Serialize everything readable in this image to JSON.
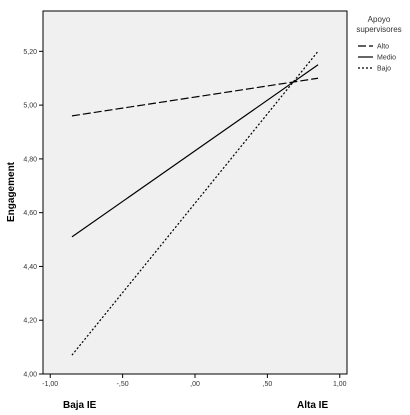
{
  "chart_data": {
    "type": "line",
    "x": [
      -0.85,
      0.85
    ],
    "series": [
      {
        "name": "Alto",
        "values": [
          4.96,
          5.1
        ],
        "dash": "8,3"
      },
      {
        "name": "Medio",
        "values": [
          4.51,
          5.15
        ],
        "dash": ""
      },
      {
        "name": "Bajo",
        "values": [
          4.07,
          5.2
        ],
        "dash": "2,2"
      }
    ],
    "xlim": [
      -1.05,
      1.05
    ],
    "ylim": [
      4.0,
      5.35
    ],
    "xticks": [
      -1.0,
      -0.5,
      0.0,
      0.5,
      1.0
    ],
    "xtick_labels": [
      "-1,00",
      "-,50",
      ",00",
      ",50",
      "1,00"
    ],
    "yticks": [
      4.0,
      4.2,
      4.4,
      4.6,
      4.8,
      5.0,
      5.2
    ],
    "ytick_labels": [
      "4,00",
      "4,20",
      "4,40",
      "4,60",
      "4,80",
      "5,00",
      "5,20"
    ],
    "ylabel": "Engagement",
    "xlabel_left": "Baja IE",
    "xlabel_right": "Alta IE",
    "legend_title_line1": "Apoyo",
    "legend_title_line2": "supervisores",
    "legend_position": "right",
    "grid": false,
    "colors": {
      "plot_bg": "#f0f0f0",
      "line": "#000000",
      "frame": "#000000"
    }
  }
}
